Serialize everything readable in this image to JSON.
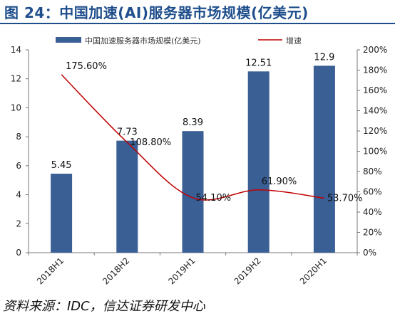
{
  "title": "图 24：中国加速(AI)服务器市场规模(亿美元)",
  "source": "资料来源：IDC，信达证券研发中心",
  "colors": {
    "bar": "#3a5f95",
    "line": "#c00000",
    "title": "#1f4e8c",
    "axis": "#777777"
  },
  "chart_data": {
    "type": "bar",
    "categories": [
      "2018H1",
      "2018H2",
      "2019H1",
      "2019H2",
      "2020H1"
    ],
    "series": [
      {
        "name": "中国加速服务器市场规模(亿美元)",
        "type": "bar",
        "axis": "left",
        "values": [
          5.45,
          7.73,
          8.39,
          12.51,
          12.9
        ],
        "labels": [
          "5.45",
          "7.73",
          "8.39",
          "12.51",
          "12.9"
        ]
      },
      {
        "name": "增速",
        "type": "line",
        "axis": "right",
        "values": [
          175.6,
          108.8,
          54.1,
          61.9,
          53.7
        ],
        "labels": [
          "175.60%",
          "108.80%",
          "54.10%",
          "61.90%",
          "53.70%"
        ]
      }
    ],
    "left_axis": {
      "ylim": [
        0,
        14
      ],
      "ticks": [
        "0",
        "2",
        "4",
        "6",
        "8",
        "10",
        "12",
        "14"
      ]
    },
    "right_axis": {
      "ylim": [
        0,
        200
      ],
      "ticks": [
        "0%",
        "20%",
        "40%",
        "60%",
        "80%",
        "100%",
        "120%",
        "140%",
        "160%",
        "180%",
        "200%"
      ]
    },
    "legend_position": "top",
    "grid": false
  }
}
